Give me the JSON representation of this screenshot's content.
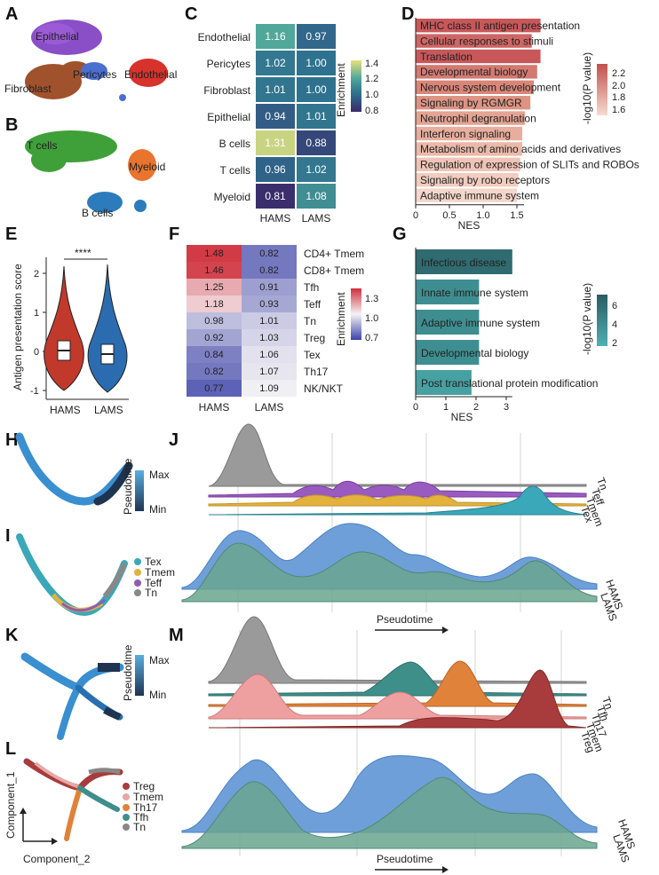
{
  "panels": {
    "A": "A",
    "B": "B",
    "C": "C",
    "D": "D",
    "E": "E",
    "F": "F",
    "G": "G",
    "H": "H",
    "I": "I",
    "J": "J",
    "K": "K",
    "L": "L",
    "M": "M"
  },
  "umap_A": {
    "labels": [
      "Epithelial",
      "Pericytes",
      "Endothelial",
      "Fibroblast"
    ]
  },
  "umap_B": {
    "labels": [
      "T cells",
      "Myeloid",
      "B cells"
    ]
  },
  "heatmap_C": {
    "rows": [
      "Endothelial",
      "Pericytes",
      "Fibroblast",
      "Epithelial",
      "B cells",
      "T cells",
      "Myeloid"
    ],
    "cols": [
      "HAMS",
      "LAMS"
    ],
    "values": [
      [
        1.16,
        0.97
      ],
      [
        1.02,
        1.0
      ],
      [
        1.01,
        1.0
      ],
      [
        0.94,
        1.01
      ],
      [
        1.31,
        0.88
      ],
      [
        0.96,
        1.02
      ],
      [
        0.81,
        1.08
      ]
    ],
    "value_text": [
      [
        "1.16",
        "0.97"
      ],
      [
        "1.02",
        "1.00"
      ],
      [
        "1.01",
        "1.00"
      ],
      [
        "0.94",
        "1.01"
      ],
      [
        "1.31",
        "0.88"
      ],
      [
        "0.96",
        "1.02"
      ],
      [
        "0.81",
        "1.08"
      ]
    ],
    "legend_title": "Enrichment",
    "legend_ticks": [
      "1.4",
      "1.2",
      "1.0",
      "0.8"
    ]
  },
  "bars_D": {
    "terms": [
      "MHC class II antigen presentation",
      "Cellular responses to stimuli",
      "Translation",
      "Developmental biology",
      "Nervous system development",
      "Signaling by RGMGR",
      "Neutrophil degranulation",
      "Interferon signaling",
      "Metabolism of amino acids and derivatives",
      "Regulation of expression of SLITs and ROBOs",
      "Signaling by robo receptors",
      "Adaptive immune system"
    ],
    "values": [
      1.85,
      1.72,
      1.85,
      1.8,
      1.75,
      1.7,
      1.62,
      1.58,
      1.58,
      1.55,
      1.52,
      1.5
    ],
    "colors": [
      "#c8575a",
      "#cd6664",
      "#c8575a",
      "#d27a72",
      "#d88678",
      "#dd9483",
      "#e3a494",
      "#e7ae9e",
      "#ebb9a9",
      "#efc4b6",
      "#f1ccbf",
      "#f4d6ca"
    ],
    "xlabel": "NES",
    "xticks": [
      "0",
      "0.5",
      "1.0",
      "1.5"
    ],
    "legend_title": "-log10(P value)",
    "legend_ticks": [
      "2.2",
      "2.0",
      "1.8",
      "1.6"
    ]
  },
  "violin_E": {
    "ylabel": "Antigen presentation score",
    "groups": [
      "HAMS",
      "LAMS"
    ],
    "colors": [
      "#c0392b",
      "#2b6cb0"
    ],
    "yticks": [
      "2",
      "1",
      "0",
      "-1"
    ],
    "significance": "****"
  },
  "heatmap_F": {
    "rows": [
      "CD4+ Tmem",
      "CD8+ Tmem",
      "Tfh",
      "Teff",
      "Tn",
      "Treg",
      "Tex",
      "Th17",
      "NK/NKT"
    ],
    "cols": [
      "HAMS",
      "LAMS"
    ],
    "values": [
      [
        1.48,
        0.82
      ],
      [
        1.46,
        0.82
      ],
      [
        1.25,
        0.91
      ],
      [
        1.18,
        0.93
      ],
      [
        0.98,
        1.01
      ],
      [
        0.92,
        1.03
      ],
      [
        0.84,
        1.06
      ],
      [
        0.82,
        1.07
      ],
      [
        0.77,
        1.09
      ]
    ],
    "value_text": [
      [
        "1.48",
        "0.82"
      ],
      [
        "1.46",
        "0.82"
      ],
      [
        "1.25",
        "0.91"
      ],
      [
        "1.18",
        "0.93"
      ],
      [
        "0.98",
        "1.01"
      ],
      [
        "0.92",
        "1.03"
      ],
      [
        "0.84",
        "1.06"
      ],
      [
        "0.82",
        "1.07"
      ],
      [
        "0.77",
        "1.09"
      ]
    ],
    "legend_title": "Enrichment",
    "legend_ticks": [
      "1.3",
      "1.0",
      "0.7"
    ]
  },
  "bars_G": {
    "terms": [
      "Infectious disease",
      "Innate immune system",
      "Adaptive immune system",
      "Developmental biology",
      "Post translational protein modification"
    ],
    "values": [
      3.2,
      2.1,
      2.1,
      2.1,
      1.85
    ],
    "colors": [
      "#2f6b70",
      "#3e8e91",
      "#3e8e91",
      "#3e8e91",
      "#47a0a2"
    ],
    "xlabel": "NES",
    "xticks": [
      "0",
      "1",
      "2",
      "3"
    ],
    "legend_title": "-log10(P value)",
    "legend_ticks": [
      "6",
      "4",
      "2"
    ]
  },
  "legend_H": {
    "title": "Pseudotime",
    "max": "Max",
    "min": "Min"
  },
  "legend_I": {
    "items": [
      "Tex",
      "Tmem",
      "Teff",
      "Tn"
    ],
    "colors": [
      "#3aa8b8",
      "#e3b23c",
      "#8e5bb5",
      "#888888"
    ]
  },
  "ridge_J": {
    "labels": [
      "Tn",
      "Teff",
      "Tmem",
      "Tex"
    ],
    "group_labels": [
      "HAMS",
      "LAMS"
    ],
    "xlabel": "Pseudotime"
  },
  "legend_K": {
    "title": "Pseudotime",
    "max": "Max",
    "min": "Min"
  },
  "legend_L": {
    "items": [
      "Treg",
      "Tmem",
      "Th17",
      "Tfh",
      "Tn"
    ],
    "colors": [
      "#a83c3c",
      "#e8a8a8",
      "#e0823a",
      "#3e8e8a",
      "#888888"
    ],
    "axis_y": "Component_1",
    "axis_x": "Component_2"
  },
  "ridge_M": {
    "labels": [
      "Tn",
      "Tfh",
      "Th17",
      "Tmem",
      "Treg"
    ],
    "group_labels": [
      "HAMS",
      "LAMS"
    ],
    "xlabel": "Pseudotime"
  }
}
